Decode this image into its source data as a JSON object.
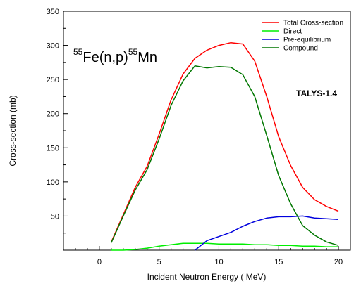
{
  "chart_data": {
    "type": "line",
    "xlabel": "Incident Neutron Energy ( MeV)",
    "ylabel": "Cross-section (mb)",
    "xlim": [
      -3,
      21
    ],
    "ylim": [
      0,
      350
    ],
    "xticks": [
      0,
      5,
      10,
      15,
      20
    ],
    "yticks": [
      50,
      100,
      150,
      200,
      250,
      300,
      350
    ],
    "legend_position": "top-right",
    "grid": false,
    "annotations": {
      "reaction_mass_1": "55",
      "reaction_element_1": "Fe(n,p)",
      "reaction_mass_2": "55",
      "reaction_element_2": "Mn",
      "code": "TALYS-1.4"
    },
    "series": [
      {
        "name": "Total Cross-section",
        "color": "#ff0000",
        "x": [
          1,
          2,
          3,
          4,
          5,
          6,
          7,
          8,
          9,
          10,
          11,
          12,
          13,
          14,
          15,
          16,
          17,
          18,
          19,
          20
        ],
        "y": [
          12,
          52,
          92,
          123,
          170,
          220,
          258,
          281,
          293,
          300,
          304,
          302,
          277,
          225,
          166,
          124,
          92,
          74,
          64,
          57
        ]
      },
      {
        "name": "Direct",
        "color": "#00ee00",
        "x": [
          1,
          2,
          3,
          4,
          5,
          6,
          7,
          8,
          9,
          10,
          11,
          12,
          13,
          14,
          15,
          16,
          17,
          18,
          19,
          20
        ],
        "y": [
          0,
          0,
          1,
          3,
          6,
          8,
          10,
          10,
          10,
          9,
          9,
          9,
          8,
          8,
          7,
          7,
          6,
          6,
          5,
          5
        ]
      },
      {
        "name": "Pre-equilibrium",
        "color": "#0000dd",
        "x": [
          8,
          9,
          10,
          11,
          12,
          13,
          14,
          15,
          16,
          17,
          18,
          19,
          20
        ],
        "y": [
          0,
          14,
          20,
          26,
          35,
          42,
          47,
          49,
          49,
          50,
          47,
          46,
          45
        ]
      },
      {
        "name": "Compound",
        "color": "#007700",
        "x": [
          1,
          2,
          3,
          4,
          5,
          6,
          7,
          8,
          9,
          10,
          11,
          12,
          13,
          14,
          15,
          16,
          17,
          18,
          19,
          20
        ],
        "y": [
          11,
          50,
          88,
          118,
          163,
          212,
          248,
          270,
          267,
          269,
          268,
          257,
          225,
          168,
          109,
          68,
          36,
          22,
          12,
          7
        ]
      }
    ]
  }
}
